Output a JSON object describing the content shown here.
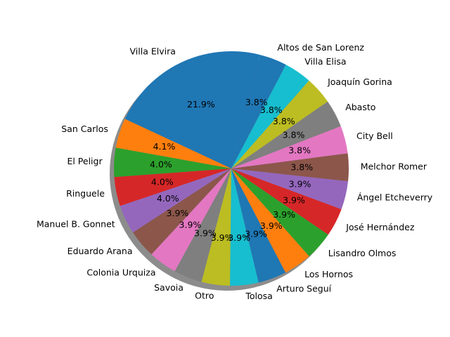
{
  "chart_data": {
    "type": "pie",
    "title": "",
    "shadow": true,
    "start_angle_deg": 76,
    "direction": "counterclockwise",
    "label_format": "%.1f%%",
    "slices": [
      {
        "label": "Villa Elvira",
        "percent": 21.9,
        "color": "#1f77b4"
      },
      {
        "label": "San Carlos",
        "percent": 4.1,
        "color": "#ff7f0e"
      },
      {
        "label": "El Peligr",
        "percent": 4.0,
        "color": "#2ca02c"
      },
      {
        "label": "Ringuele",
        "percent": 4.0,
        "color": "#d62728"
      },
      {
        "label": "Manuel B. Gonnet",
        "percent": 4.0,
        "color": "#9467bd"
      },
      {
        "label": "Eduardo Arana",
        "percent": 3.9,
        "color": "#8c564b"
      },
      {
        "label": "Colonia Urquiza",
        "percent": 3.9,
        "color": "#e377c2"
      },
      {
        "label": "Savoia",
        "percent": 3.9,
        "color": "#7f7f7f"
      },
      {
        "label": "Otro",
        "percent": 3.9,
        "color": "#bcbd22"
      },
      {
        "label": "Tolosa",
        "percent": 3.9,
        "color": "#17becf"
      },
      {
        "label": "Arturo Seguí",
        "percent": 3.9,
        "color": "#1f77b4"
      },
      {
        "label": "Los Hornos",
        "percent": 3.9,
        "color": "#ff7f0e"
      },
      {
        "label": "Lisandro Olmos",
        "percent": 3.9,
        "color": "#2ca02c"
      },
      {
        "label": "José Hernández",
        "percent": 3.9,
        "color": "#d62728"
      },
      {
        "label": "Ángel Etcheverry",
        "percent": 3.9,
        "color": "#9467bd"
      },
      {
        "label": "Melchor Romer",
        "percent": 3.8,
        "color": "#8c564b"
      },
      {
        "label": "City Bell",
        "percent": 3.8,
        "color": "#e377c2"
      },
      {
        "label": "Abasto",
        "percent": 3.8,
        "color": "#7f7f7f"
      },
      {
        "label": "Joaquín Gorina",
        "percent": 3.8,
        "color": "#bcbd22"
      },
      {
        "label": "Villa Elisa",
        "percent": 3.8,
        "color": "#17becf"
      },
      {
        "label": "Altos de San Lorenz",
        "percent": 3.8,
        "color": "#1f77b4"
      }
    ]
  }
}
